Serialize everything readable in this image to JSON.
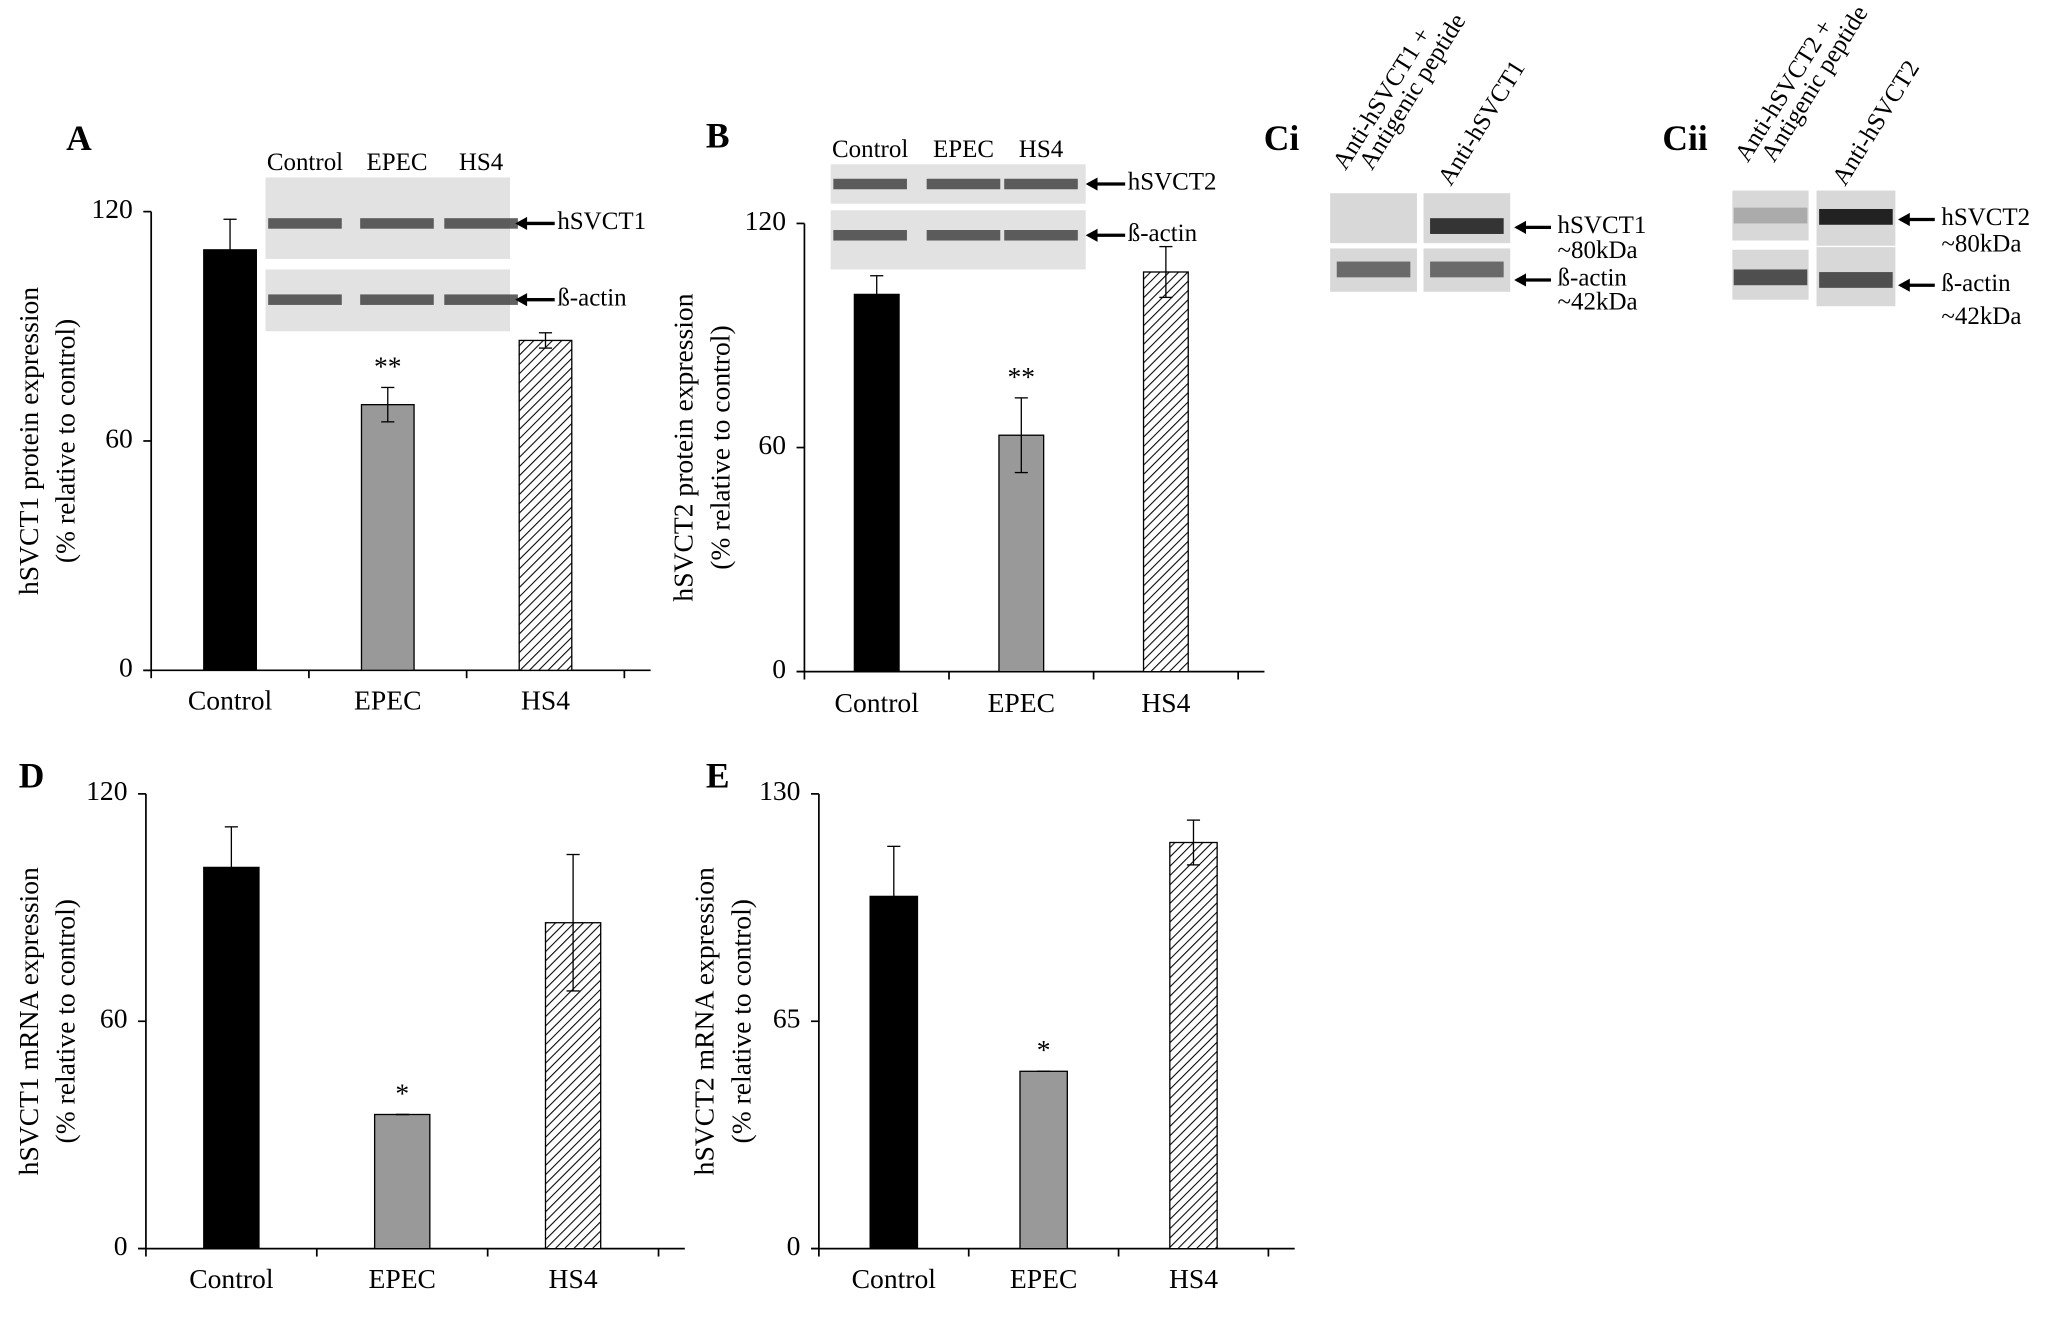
{
  "chart_data": [
    {
      "type": "bar",
      "panel_label": "A",
      "ylabel": [
        "hSVCT1 protein expression",
        "(% relative to control)"
      ],
      "categories": [
        "Control",
        "EPEC",
        "HS4"
      ],
      "values": [
        110,
        69.5,
        86.3
      ],
      "errors": [
        8,
        4.5,
        2
      ],
      "colors": [
        "#000000",
        "#999999",
        "#ffffff"
      ],
      "hatch": [
        false,
        false,
        true
      ],
      "annotations": [
        null,
        "**",
        null
      ],
      "ylim": [
        0,
        120
      ],
      "yticks": [
        0,
        60,
        120
      ],
      "inset": {
        "lanes": [
          "Control",
          "EPEC",
          "HS4"
        ],
        "bands": [
          "hSVCT1",
          "ß-actin"
        ]
      }
    },
    {
      "type": "bar",
      "panel_label": "B",
      "ylabel": [
        "hSVCT2 protein expression",
        "(% relative to control)"
      ],
      "categories": [
        "Control",
        "EPEC",
        "HS4"
      ],
      "values": [
        101,
        63.3,
        107
      ],
      "errors": [
        5,
        10,
        6.8
      ],
      "colors": [
        "#000000",
        "#999999",
        "#ffffff"
      ],
      "hatch": [
        false,
        false,
        true
      ],
      "annotations": [
        null,
        "**",
        null
      ],
      "ylim": [
        0,
        120
      ],
      "yticks": [
        0,
        60,
        120
      ],
      "inset": {
        "lanes": [
          "Control",
          "EPEC",
          "HS4"
        ],
        "bands": [
          "hSVCT2",
          "ß-actin"
        ]
      }
    },
    {
      "type": "bar",
      "panel_label": "D",
      "ylabel": [
        "hSVCT1 mRNA expression",
        "(% relative to control)"
      ],
      "categories": [
        "Control",
        "EPEC",
        "HS4"
      ],
      "values": [
        100.6,
        35.4,
        86
      ],
      "errors": [
        10.7,
        0,
        18
      ],
      "colors": [
        "#000000",
        "#999999",
        "#ffffff"
      ],
      "hatch": [
        false,
        false,
        true
      ],
      "annotations": [
        null,
        "*",
        null
      ],
      "ylim": [
        0,
        120
      ],
      "yticks": [
        0,
        60,
        120
      ]
    },
    {
      "type": "bar",
      "panel_label": "E",
      "ylabel": [
        "hSVCT2 mRNA expression",
        "(% relative to control)"
      ],
      "categories": [
        "Control",
        "EPEC",
        "HS4"
      ],
      "values": [
        100.7,
        50.7,
        116.1
      ],
      "errors": [
        14.3,
        0,
        6.4
      ],
      "colors": [
        "#000000",
        "#999999",
        "#ffffff"
      ],
      "hatch": [
        false,
        false,
        true
      ],
      "annotations": [
        null,
        "*",
        null
      ],
      "ylim": [
        0,
        130
      ],
      "yticks": [
        0,
        65,
        130
      ]
    }
  ],
  "blots": [
    {
      "label": "Ci",
      "lanes": [
        [
          "Anti-hSVCT1 +",
          "Antigenic peptide"
        ],
        [
          "Anti-hSVCT1"
        ]
      ],
      "bands": [
        {
          "name": "hSVCT1",
          "size": "~80kDa"
        },
        {
          "name": "ß-actin",
          "size": "~42kDa"
        }
      ]
    },
    {
      "label": "Cii",
      "lanes": [
        [
          "Anti-hSVCT2 +",
          "Antigenic peptide"
        ],
        [
          "Anti-hSVCT2"
        ]
      ],
      "bands": [
        {
          "name": "hSVCT2",
          "size": "~80kDa"
        },
        {
          "name": "ß-actin",
          "size": "~42kDa"
        }
      ]
    }
  ]
}
